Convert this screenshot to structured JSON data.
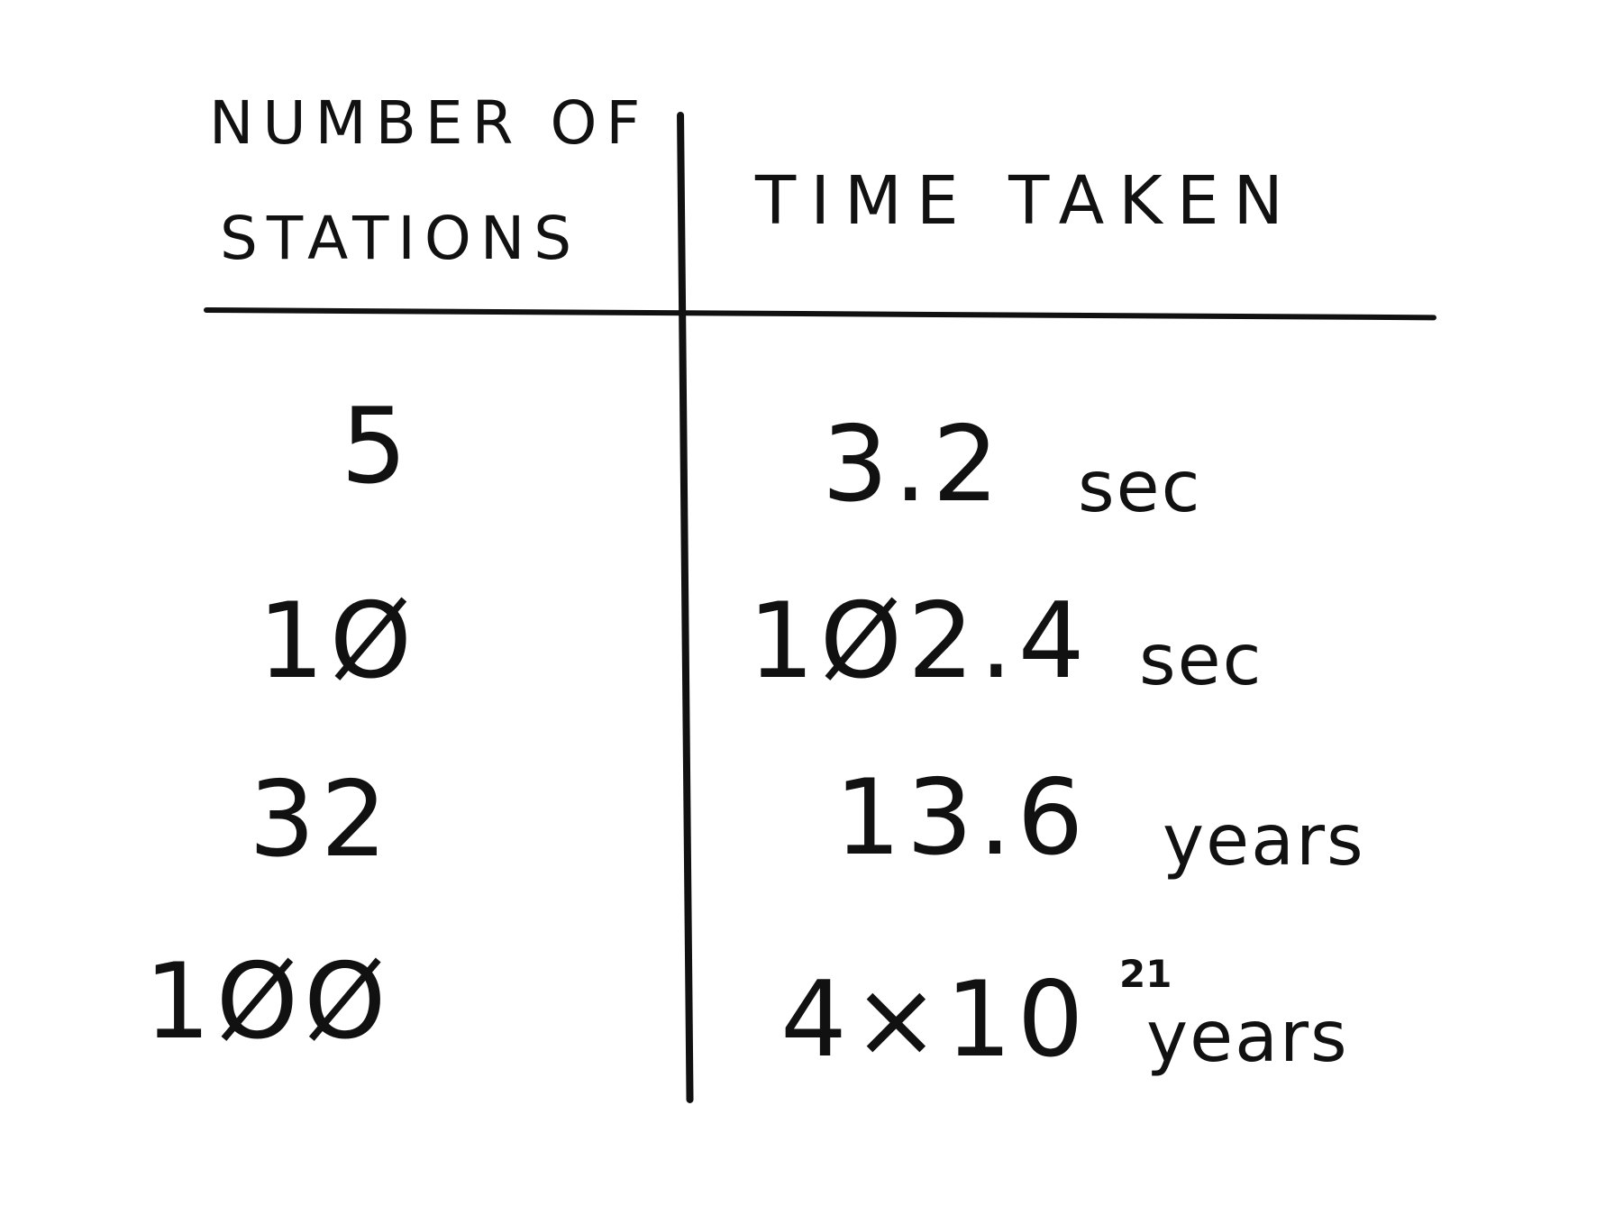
{
  "table": {
    "headers": {
      "col1_line1": "NUMBER OF",
      "col1_line2": "STATIONS",
      "col2": "TIME TAKEN"
    },
    "rows": [
      {
        "stations": "5",
        "time_value": "3.2",
        "time_unit": "sec"
      },
      {
        "stations": "1Ø",
        "time_value": "1Ø2.4",
        "time_unit": "sec"
      },
      {
        "stations": "32",
        "time_value": "13.6",
        "time_unit": "years"
      },
      {
        "stations": "1ØØ",
        "time_value": "4×10",
        "time_exponent": "21",
        "time_unit": "years"
      }
    ]
  }
}
